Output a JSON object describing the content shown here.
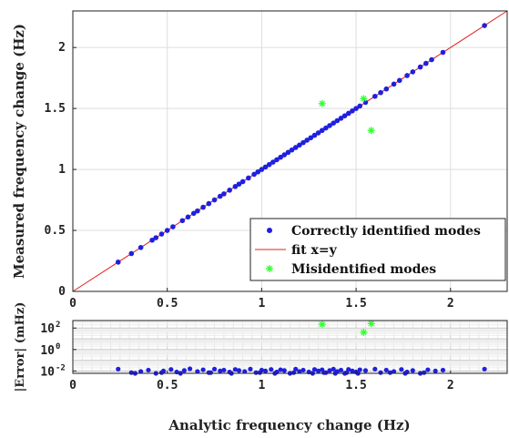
{
  "chart_data": [
    {
      "type": "scatter",
      "ylabel": "Measured frequency change (Hz)",
      "xlim": [
        0,
        2.3
      ],
      "ylim": [
        0,
        2.3
      ],
      "x_ticks": [
        0,
        0.5,
        1,
        1.5,
        2
      ],
      "x_tick_labels": [
        "0",
        "0.5",
        "1",
        "1.5",
        "2"
      ],
      "y_ticks": [
        0,
        0.5,
        1,
        1.5,
        2
      ],
      "y_tick_labels": [
        "0",
        "0.5",
        "1",
        "1.5",
        "2"
      ],
      "grid": true,
      "legend_position": "bottom-right",
      "series": [
        {
          "name": "Correctly identified modes",
          "color": "#1f1fe0",
          "marker": "dot",
          "x": [
            0.24,
            0.31,
            0.36,
            0.42,
            0.44,
            0.47,
            0.5,
            0.53,
            0.58,
            0.61,
            0.64,
            0.66,
            0.69,
            0.72,
            0.75,
            0.78,
            0.8,
            0.83,
            0.86,
            0.88,
            0.9,
            0.93,
            0.96,
            0.98,
            1.0,
            1.02,
            1.04,
            1.06,
            1.08,
            1.1,
            1.12,
            1.14,
            1.16,
            1.18,
            1.2,
            1.22,
            1.24,
            1.26,
            1.28,
            1.3,
            1.32,
            1.34,
            1.36,
            1.38,
            1.4,
            1.42,
            1.44,
            1.46,
            1.48,
            1.5,
            1.52,
            1.55,
            1.6,
            1.63,
            1.66,
            1.7,
            1.73,
            1.77,
            1.8,
            1.84,
            1.87,
            1.9,
            1.96,
            2.18
          ],
          "y": [
            0.24,
            0.31,
            0.36,
            0.42,
            0.44,
            0.47,
            0.5,
            0.53,
            0.58,
            0.61,
            0.64,
            0.66,
            0.69,
            0.72,
            0.75,
            0.78,
            0.8,
            0.83,
            0.86,
            0.88,
            0.9,
            0.93,
            0.96,
            0.98,
            1.0,
            1.02,
            1.04,
            1.06,
            1.08,
            1.1,
            1.12,
            1.14,
            1.16,
            1.18,
            1.2,
            1.22,
            1.24,
            1.26,
            1.28,
            1.3,
            1.32,
            1.34,
            1.36,
            1.38,
            1.4,
            1.42,
            1.44,
            1.46,
            1.48,
            1.5,
            1.52,
            1.55,
            1.6,
            1.63,
            1.66,
            1.7,
            1.73,
            1.77,
            1.8,
            1.84,
            1.87,
            1.9,
            1.96,
            2.18
          ]
        },
        {
          "name": "fit x=y",
          "color": "#e02020",
          "marker": "line",
          "x": [
            0,
            2.3
          ],
          "y": [
            0,
            2.3
          ]
        },
        {
          "name": "Misidentified modes",
          "color": "#33ff33",
          "marker": "asterisk",
          "x": [
            1.32,
            1.54,
            1.58
          ],
          "y": [
            1.54,
            1.58,
            1.32
          ]
        }
      ]
    },
    {
      "type": "scatter",
      "xlabel": "Analytic frequency change (Hz)",
      "ylabel": "|Error| (mHz)",
      "xlim": [
        0,
        2.3
      ],
      "ylim": [
        0.006,
        500
      ],
      "yscale": "log",
      "x_ticks": [
        0,
        0.5,
        1,
        1.5,
        2
      ],
      "x_tick_labels": [
        "0",
        "0.5",
        "1",
        "1.5",
        "2"
      ],
      "y_ticks": [
        0.01,
        1,
        100
      ],
      "y_tick_labels": [
        [
          "10",
          "-2"
        ],
        [
          "10",
          "0"
        ],
        [
          "10",
          "2"
        ]
      ],
      "grid": true,
      "series": [
        {
          "name": "Correctly identified modes",
          "color": "#1f1fe0",
          "marker": "dot",
          "x": [
            0.24,
            0.31,
            0.36,
            0.4,
            0.44,
            0.48,
            0.52,
            0.55,
            0.59,
            0.62,
            0.66,
            0.69,
            0.72,
            0.75,
            0.78,
            0.8,
            0.83,
            0.86,
            0.88,
            0.91,
            0.94,
            0.97,
            1.0,
            1.02,
            1.05,
            1.08,
            1.1,
            1.12,
            1.15,
            1.18,
            1.2,
            1.22,
            1.25,
            1.28,
            1.3,
            1.32,
            1.34,
            1.36,
            1.38,
            1.4,
            1.42,
            1.44,
            1.46,
            1.48,
            1.5,
            1.52,
            1.55,
            1.6,
            1.63,
            1.66,
            1.7,
            1.74,
            1.77,
            1.8,
            1.84,
            1.88,
            1.92,
            1.96,
            2.18,
            0.33,
            0.47,
            0.57,
            0.73,
            0.84,
            0.99,
            1.07,
            1.17,
            1.27,
            1.33,
            1.39,
            1.45,
            1.51,
            1.68,
            1.76,
            1.86
          ],
          "y": [
            0.015,
            0.007,
            0.009,
            0.012,
            0.006,
            0.01,
            0.014,
            0.008,
            0.011,
            0.016,
            0.009,
            0.013,
            0.007,
            0.015,
            0.01,
            0.012,
            0.008,
            0.014,
            0.011,
            0.009,
            0.015,
            0.007,
            0.012,
            0.01,
            0.014,
            0.008,
            0.013,
            0.011,
            0.006,
            0.015,
            0.009,
            0.012,
            0.008,
            0.014,
            0.01,
            0.013,
            0.007,
            0.011,
            0.015,
            0.009,
            0.012,
            0.006,
            0.014,
            0.01,
            0.008,
            0.013,
            0.011,
            0.015,
            0.007,
            0.012,
            0.009,
            0.014,
            0.008,
            0.011,
            0.006,
            0.013,
            0.01,
            0.012,
            0.015,
            0.006,
            0.007,
            0.006,
            0.007,
            0.006,
            0.007,
            0.006,
            0.007,
            0.006,
            0.007,
            0.006,
            0.007,
            0.006,
            0.007,
            0.006,
            0.007
          ]
        },
        {
          "name": "Misidentified modes",
          "color": "#33ff33",
          "marker": "asterisk",
          "x": [
            1.32,
            1.54,
            1.58
          ],
          "y": [
            220,
            40,
            260
          ]
        }
      ]
    }
  ]
}
